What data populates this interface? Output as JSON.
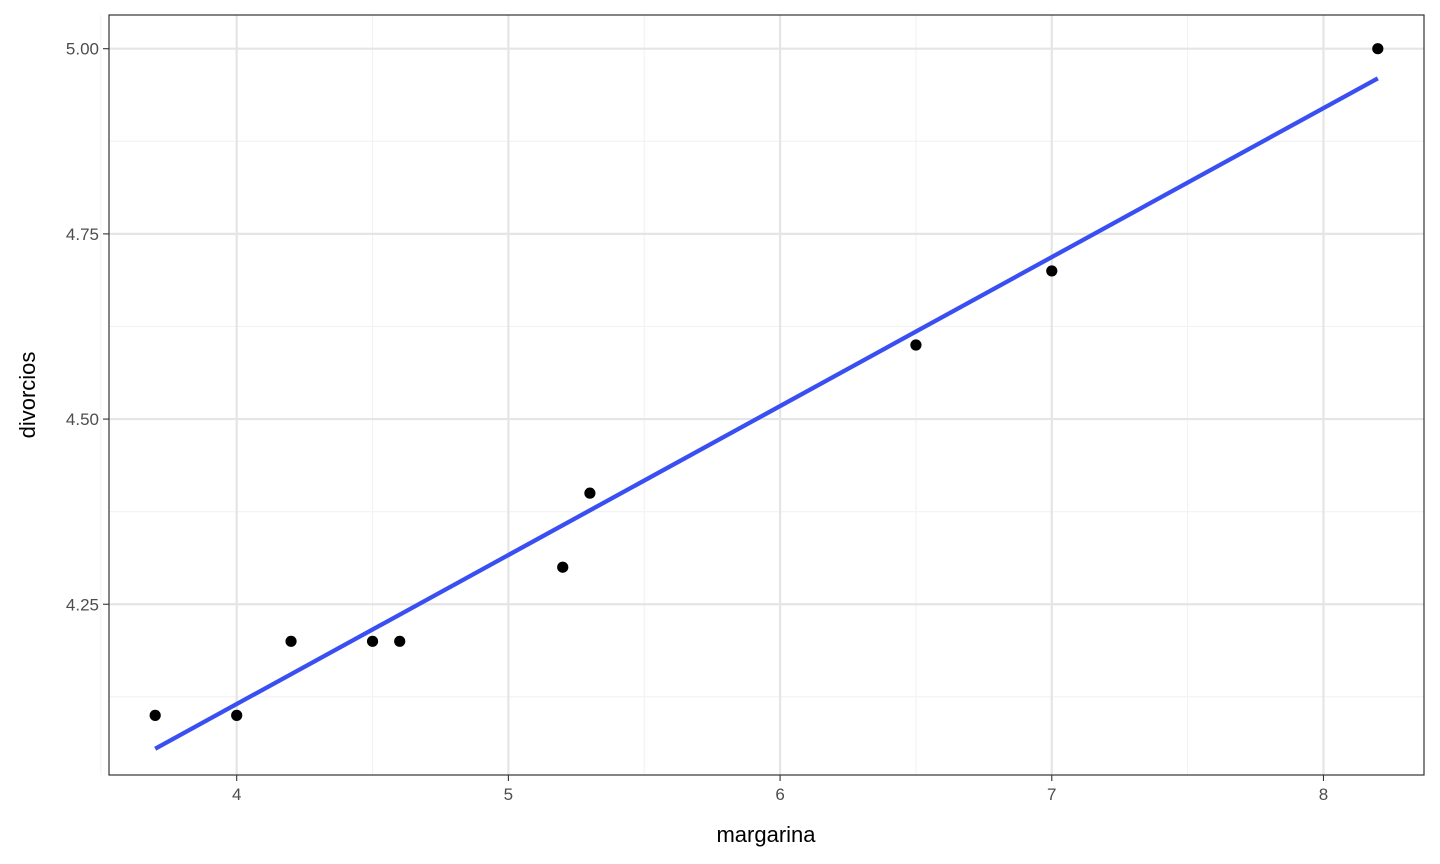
{
  "chart_data": {
    "type": "scatter",
    "title": "",
    "xlabel": "margarina",
    "ylabel": "divorcios",
    "xlim": [
      3.53,
      8.37
    ],
    "ylim": [
      4.0195,
      5.0455
    ],
    "x_ticks": [
      4,
      5,
      6,
      7,
      8
    ],
    "x_tick_labels": [
      "4",
      "5",
      "6",
      "7",
      "8"
    ],
    "x_minor_ticks": [
      3.5,
      4.5,
      5.5,
      6.5,
      7.5
    ],
    "y_ticks": [
      4.25,
      4.5,
      4.75,
      5.0
    ],
    "y_tick_labels": [
      "4.25",
      "4.50",
      "4.75",
      "5.00"
    ],
    "y_minor_ticks": [
      4.125,
      4.375,
      4.625,
      4.875
    ],
    "grid": true,
    "points": {
      "x": [
        3.7,
        4.0,
        4.2,
        4.5,
        4.6,
        5.2,
        5.3,
        6.5,
        7.0,
        8.2
      ],
      "y": [
        4.1,
        4.1,
        4.2,
        4.2,
        4.2,
        4.3,
        4.4,
        4.6,
        4.7,
        5.0
      ],
      "color": "#000000"
    },
    "fit_line": {
      "x": [
        3.7,
        8.2
      ],
      "y": [
        4.055,
        4.96
      ],
      "color": "#3a4ff2"
    },
    "colors": {
      "panel_border": "#333333",
      "grid_major": "#e5e5e5",
      "grid_minor": "#f2f2f2",
      "tick": "#333333"
    }
  }
}
